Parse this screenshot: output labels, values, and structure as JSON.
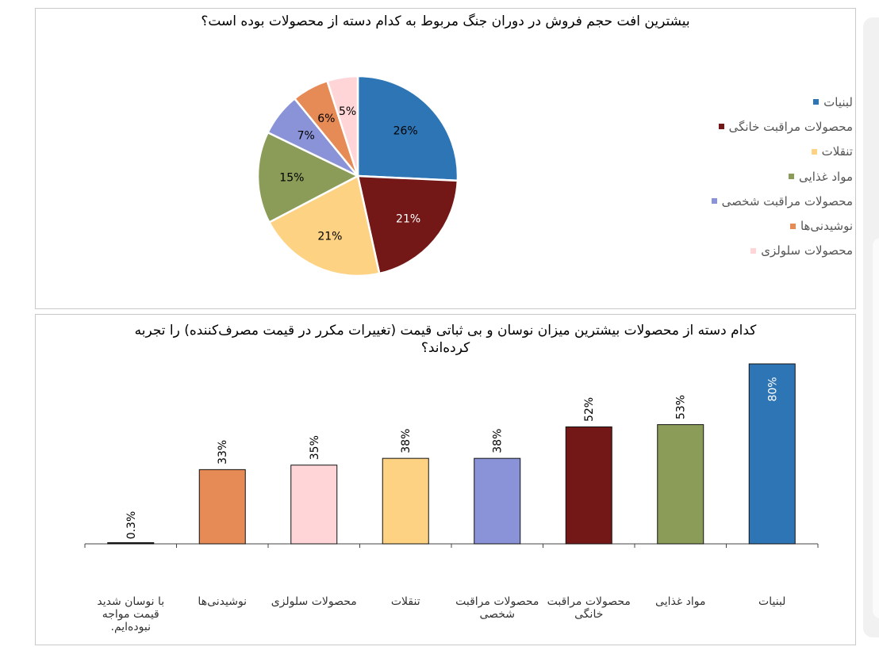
{
  "chart_data": [
    {
      "type": "pie",
      "title": "بیشترین افت حجم فروش در دوران جنگ مربوط به کدام دسته از محصولات بوده است؟",
      "slices": [
        {
          "label": "لبنیات",
          "value": 26,
          "display": "26%",
          "color": "#2E75B6"
        },
        {
          "label": "محصولات مراقبت خانگی",
          "value": 21,
          "display": "21%",
          "color": "#741717"
        },
        {
          "label": "تنقلات",
          "value": 21,
          "display": "21%",
          "color": "#FDD283"
        },
        {
          "label": "مواد غذایی",
          "value": 15,
          "display": "15%",
          "color": "#8B9C58"
        },
        {
          "label": "محصولات مراقبت شخصی",
          "value": 7,
          "display": "7%",
          "color": "#8A93D8"
        },
        {
          "label": "نوشیدنی‌ها",
          "value": 6,
          "display": "6%",
          "color": "#E68A56"
        },
        {
          "label": "محصولات سلولزی",
          "value": 5,
          "display": "5%",
          "color": "#FFD5D8"
        }
      ],
      "legend_position": "right"
    },
    {
      "type": "bar",
      "title": "کدام دسته از محصولات بیشترین میزان نوسان و بی ثباتی قیمت (تغییرات مکرر در قیمت مصرف‌کننده) را تجربه کرده‌اند؟",
      "ylim": [
        0,
        80
      ],
      "bars": [
        {
          "category": "با نوسان شدید قیمت مواجه نبوده‌ایم.",
          "value": 0.3,
          "display": "0.3%",
          "color": "#1a1a1a"
        },
        {
          "category": "نوشیدنی‌ها",
          "value": 33,
          "display": "33%",
          "color": "#E68A56"
        },
        {
          "category": "محصولات سلولزی",
          "value": 35,
          "display": "35%",
          "color": "#FFD5D8"
        },
        {
          "category": "تنقلات",
          "value": 38,
          "display": "38%",
          "color": "#FDD283"
        },
        {
          "category": "محصولات مراقبت شخصی",
          "value": 38,
          "display": "38%",
          "color": "#8A93D8"
        },
        {
          "category": "محصولات مراقبت خانگی",
          "value": 52,
          "display": "52%",
          "color": "#741717"
        },
        {
          "category": "مواد غذایی",
          "value": 53,
          "display": "53%",
          "color": "#8B9C58"
        },
        {
          "category": "لبنیات",
          "value": 80,
          "display": "80%",
          "color": "#2E75B6"
        }
      ]
    }
  ]
}
